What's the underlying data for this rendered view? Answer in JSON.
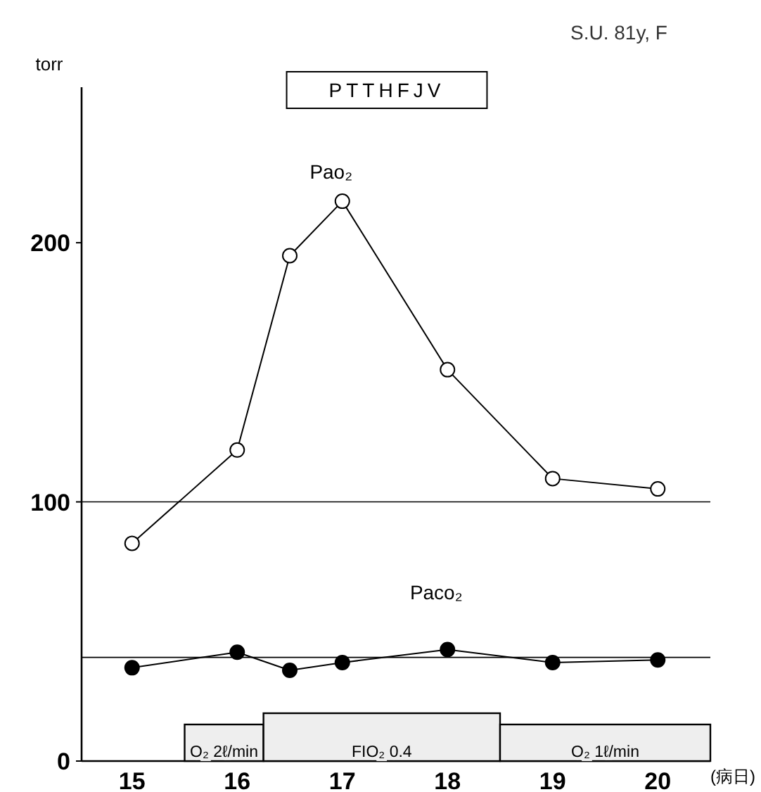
{
  "chart_data": {
    "type": "line",
    "title": "PTTHFJV",
    "subtitle": "S.U. 81y, F",
    "ylabel": "torr",
    "xlabel": "(病日)",
    "xlim": [
      14.52,
      20.5
    ],
    "xticks": [
      15,
      16,
      17,
      18,
      19,
      20
    ],
    "ylim": [
      0,
      260
    ],
    "yticks": [
      0,
      100,
      200
    ],
    "marker": "circle",
    "grid": false,
    "legend": false,
    "series": [
      {
        "name": "Pao₂",
        "color": "#000000",
        "x": [
          15,
          16,
          16.5,
          17,
          18,
          19,
          20
        ],
        "values": [
          84,
          120,
          195,
          216,
          151,
          109,
          105
        ]
      },
      {
        "name": "Paco₂",
        "color": "#000000",
        "x": [
          15,
          16,
          16.5,
          17,
          18,
          19,
          20
        ],
        "values": [
          36,
          42,
          35,
          38,
          43,
          38,
          39
        ]
      }
    ],
    "ref_lines": [
      {
        "axis": "y",
        "value": 100,
        "label": null,
        "color": "#000000"
      },
      {
        "axis": "y",
        "value": 40,
        "label": null,
        "color": "#000000"
      }
    ],
    "bands": [
      {
        "axis": "x",
        "from": 15.5,
        "to": 16.25,
        "label": "O₂ 2ℓ/min",
        "color": "#eeeeee"
      },
      {
        "axis": "x",
        "from": 16.25,
        "to": 18.5,
        "label": "FIO₂ 0.4",
        "color": "#eeeeee"
      },
      {
        "axis": "x",
        "from": 18.5,
        "to": 20.5,
        "label": "O₂ 1ℓ/min",
        "color": "#eeeeee"
      }
    ]
  }
}
